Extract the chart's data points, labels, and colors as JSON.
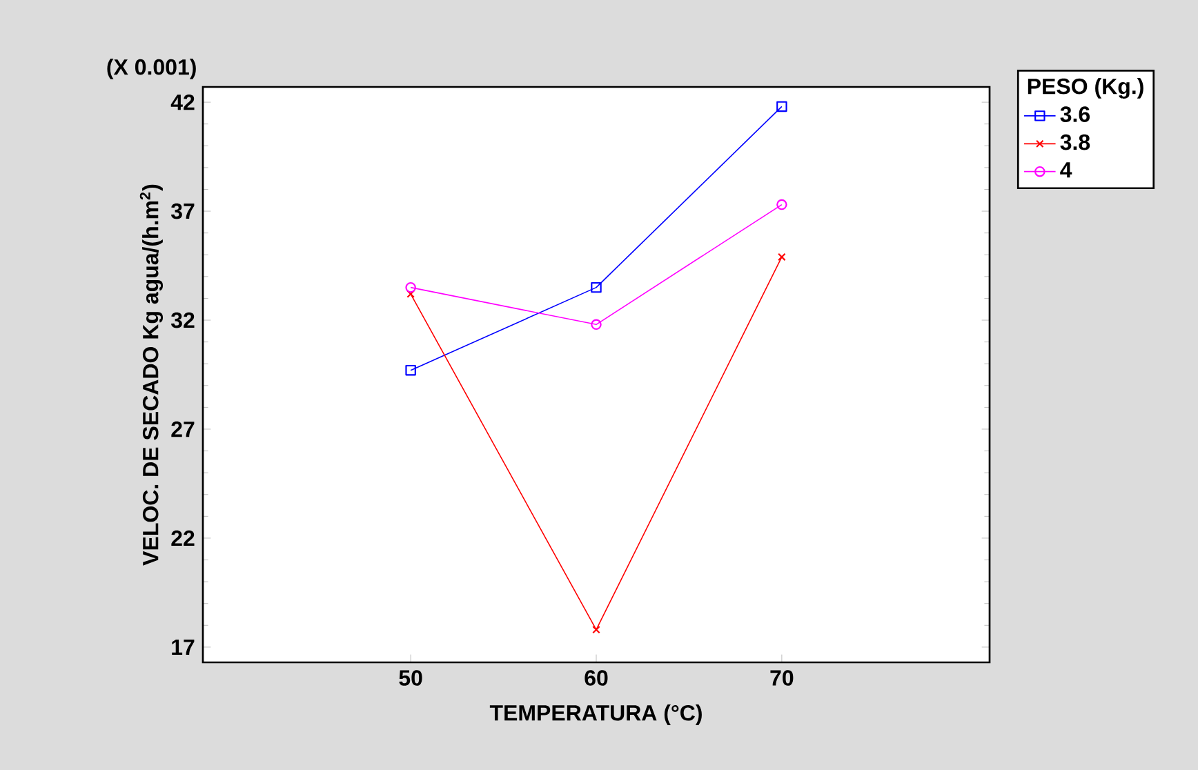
{
  "chart_data": {
    "type": "line",
    "xlabel": "TEMPERATURA (°C)",
    "ylabel": "VELOC. DE SECADO Kg agua/(h.m$^{2}$)",
    "legend_title": "PESO (Kg.)",
    "annotations": [
      "(X 0.001)"
    ],
    "x": [
      50,
      60,
      70
    ],
    "xlim": [
      38.8,
      81.2
    ],
    "xticks": [
      50,
      60,
      70
    ],
    "ylim": [
      16.3,
      42.7
    ],
    "yticks": [
      17,
      22,
      27,
      32,
      37,
      42
    ],
    "legend": "top right",
    "grid": false,
    "series": [
      {
        "name": "3.6",
        "color": "#0000ff",
        "marker": "square",
        "values": [
          29.7,
          33.5,
          41.8
        ]
      },
      {
        "name": "3.8",
        "color": "#ff0000",
        "marker": "cross",
        "values": [
          33.2,
          17.8,
          34.9
        ]
      },
      {
        "name": "4",
        "color": "#ff00ff",
        "marker": "circle",
        "values": [
          33.5,
          31.8,
          37.3
        ]
      }
    ]
  }
}
